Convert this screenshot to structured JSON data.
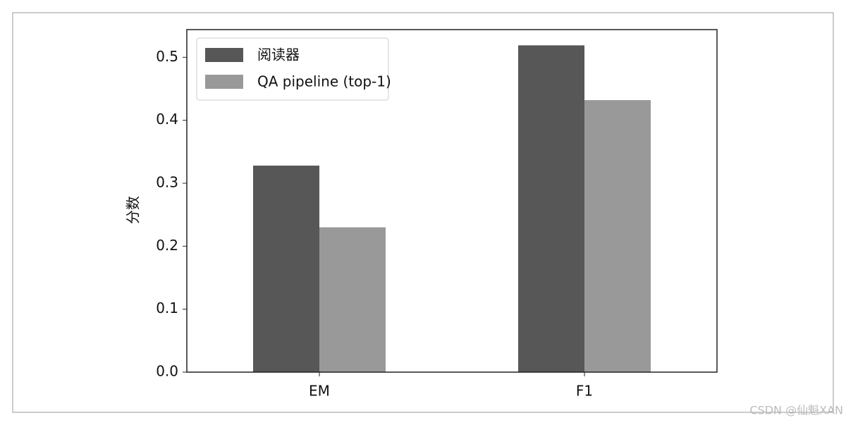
{
  "chart_data": {
    "type": "bar",
    "ylabel": "分数",
    "categories": [
      "EM",
      "F1"
    ],
    "series": [
      {
        "name": "阅读器",
        "color": "#575757",
        "values": [
          0.328,
          0.519
        ]
      },
      {
        "name": "QA pipeline (top-1)",
        "color": "#999999",
        "values": [
          0.23,
          0.432
        ]
      }
    ],
    "ylim": [
      0,
      0.544
    ],
    "yticks": [
      {
        "value": 0,
        "label": "0.0"
      },
      0.1,
      0.2,
      0.3,
      0.4,
      0.5
    ],
    "legend": "upper-left",
    "watermark": "CSDN @仙魁XAN"
  }
}
